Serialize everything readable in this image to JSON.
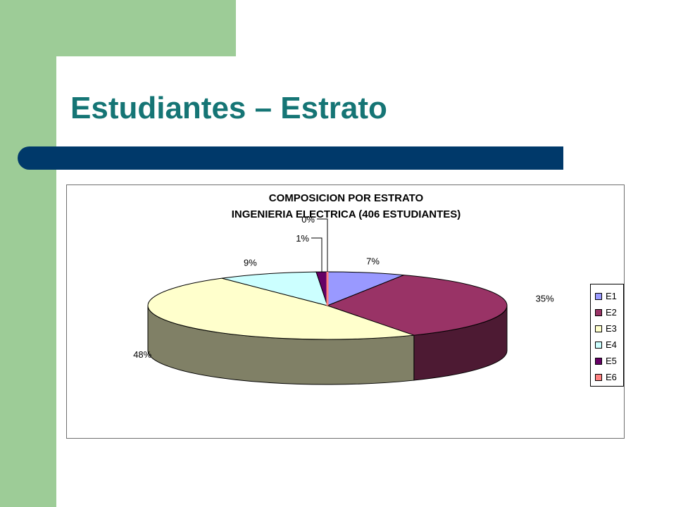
{
  "slide": {
    "title": "Estudiantes – Estrato"
  },
  "colors": {
    "green_band": "#9dcc97",
    "title_text": "#157575",
    "title_rule": "#00396a"
  },
  "chart_data": {
    "type": "pie",
    "style": "3d-pie",
    "title_lines": [
      "COMPOSICION POR ESTRATO",
      "INGENIERIA ELECTRICA (406 ESTUDIANTES)"
    ],
    "categories": [
      "E1",
      "E2",
      "E3",
      "E4",
      "E5",
      "E6"
    ],
    "values": [
      7,
      35,
      48,
      9,
      1,
      0
    ],
    "data_labels": [
      "7%",
      "35%",
      "48%",
      "9%",
      "1%",
      "0%"
    ],
    "colors": [
      "#9999ff",
      "#993366",
      "#ffffcc",
      "#ccffff",
      "#660066",
      "#ff8080"
    ],
    "legend_position": "right"
  }
}
